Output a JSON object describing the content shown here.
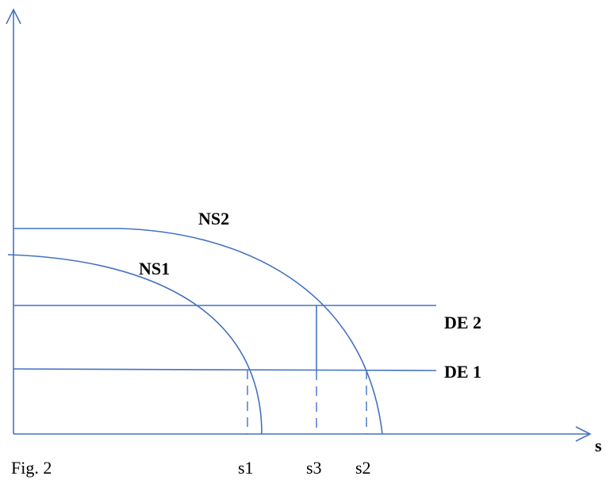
{
  "labels": {
    "ns2": "NS2",
    "ns1": "NS1",
    "de2": "DE 2",
    "de1": "DE 1",
    "x_axis": "s",
    "caption": "Fig. 2",
    "s1": "s1",
    "s3": "s3",
    "s2": "s2"
  },
  "colors": {
    "lines": "#4472c4",
    "text": "#000000"
  }
}
